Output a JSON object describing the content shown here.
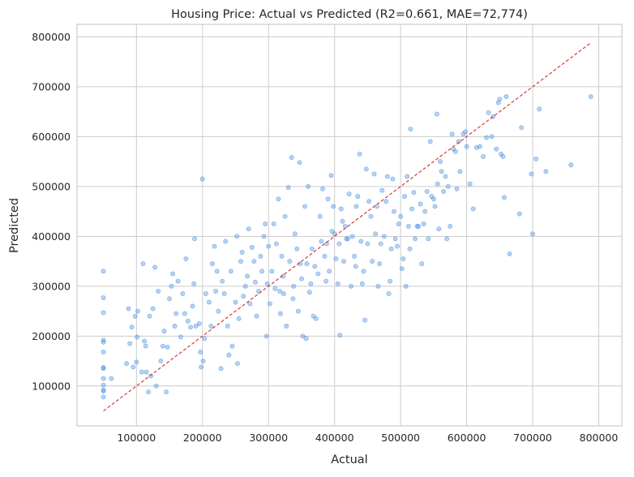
{
  "chart_data": {
    "type": "scatter",
    "title": "Housing Price: Actual vs Predicted (R2=0.661, MAE=72,774)",
    "xlabel": "Actual",
    "ylabel": "Predicted",
    "xlim": [
      10000,
      835000
    ],
    "ylim": [
      20000,
      825000
    ],
    "xticks": [
      "100000",
      "200000",
      "300000",
      "400000",
      "500000",
      "600000",
      "700000",
      "800000"
    ],
    "yticks": [
      "100000",
      "200000",
      "300000",
      "400000",
      "500000",
      "600000",
      "700000",
      "800000"
    ],
    "grid": true,
    "point_color": "#4a90e2",
    "reference_line": {
      "style": "dashed",
      "color": "#d62728",
      "from": [
        50000,
        50000
      ],
      "to": [
        788000,
        788000
      ]
    },
    "points": [
      [
        50000,
        330000
      ],
      [
        50000,
        277000
      ],
      [
        50000,
        247000
      ],
      [
        50000,
        192000
      ],
      [
        50000,
        188000
      ],
      [
        50000,
        168000
      ],
      [
        50000,
        137000
      ],
      [
        50000,
        135000
      ],
      [
        50000,
        115000
      ],
      [
        50000,
        102000
      ],
      [
        50000,
        92000
      ],
      [
        50000,
        90000
      ],
      [
        50000,
        78000
      ],
      [
        62000,
        115000
      ],
      [
        85000,
        145000
      ],
      [
        88000,
        255000
      ],
      [
        90000,
        185000
      ],
      [
        93000,
        218000
      ],
      [
        95000,
        138000
      ],
      [
        98000,
        240000
      ],
      [
        100000,
        148000
      ],
      [
        101000,
        198000
      ],
      [
        102000,
        250000
      ],
      [
        108000,
        128000
      ],
      [
        110000,
        345000
      ],
      [
        112000,
        190000
      ],
      [
        114000,
        180000
      ],
      [
        115000,
        128000
      ],
      [
        118000,
        88000
      ],
      [
        120000,
        240000
      ],
      [
        122000,
        120000
      ],
      [
        125000,
        255000
      ],
      [
        128000,
        338000
      ],
      [
        130000,
        100000
      ],
      [
        133000,
        290000
      ],
      [
        137000,
        150000
      ],
      [
        140000,
        180000
      ],
      [
        142000,
        210000
      ],
      [
        145000,
        88000
      ],
      [
        147000,
        178000
      ],
      [
        150000,
        275000
      ],
      [
        153000,
        300000
      ],
      [
        155000,
        325000
      ],
      [
        158000,
        220000
      ],
      [
        160000,
        245000
      ],
      [
        163000,
        310000
      ],
      [
        167000,
        198000
      ],
      [
        170000,
        285000
      ],
      [
        173000,
        245000
      ],
      [
        175000,
        355000
      ],
      [
        178000,
        230000
      ],
      [
        182000,
        218000
      ],
      [
        185000,
        260000
      ],
      [
        187000,
        305000
      ],
      [
        188000,
        395000
      ],
      [
        190000,
        220000
      ],
      [
        195000,
        225000
      ],
      [
        197000,
        168000
      ],
      [
        198000,
        138000
      ],
      [
        200000,
        515000
      ],
      [
        201000,
        150000
      ],
      [
        203000,
        195000
      ],
      [
        205000,
        285000
      ],
      [
        210000,
        268000
      ],
      [
        213000,
        220000
      ],
      [
        215000,
        345000
      ],
      [
        218000,
        380000
      ],
      [
        220000,
        290000
      ],
      [
        222000,
        330000
      ],
      [
        224000,
        250000
      ],
      [
        228000,
        135000
      ],
      [
        230000,
        310000
      ],
      [
        233000,
        285000
      ],
      [
        235000,
        390000
      ],
      [
        238000,
        220000
      ],
      [
        240000,
        162000
      ],
      [
        243000,
        330000
      ],
      [
        245000,
        180000
      ],
      [
        250000,
        268000
      ],
      [
        252000,
        400000
      ],
      [
        253000,
        145000
      ],
      [
        255000,
        235000
      ],
      [
        258000,
        350000
      ],
      [
        260000,
        368000
      ],
      [
        262000,
        280000
      ],
      [
        265000,
        300000
      ],
      [
        268000,
        320000
      ],
      [
        270000,
        415000
      ],
      [
        272000,
        265000
      ],
      [
        275000,
        378000
      ],
      [
        278000,
        350000
      ],
      [
        280000,
        308000
      ],
      [
        282000,
        240000
      ],
      [
        285000,
        290000
      ],
      [
        288000,
        360000
      ],
      [
        290000,
        330000
      ],
      [
        293000,
        400000
      ],
      [
        295000,
        425000
      ],
      [
        297000,
        200000
      ],
      [
        298000,
        305000
      ],
      [
        300000,
        380000
      ],
      [
        302000,
        265000
      ],
      [
        305000,
        330000
      ],
      [
        308000,
        425000
      ],
      [
        310000,
        295000
      ],
      [
        312000,
        385000
      ],
      [
        315000,
        475000
      ],
      [
        317000,
        290000
      ],
      [
        318000,
        245000
      ],
      [
        320000,
        360000
      ],
      [
        322000,
        320000
      ],
      [
        323000,
        285000
      ],
      [
        325000,
        440000
      ],
      [
        327000,
        220000
      ],
      [
        330000,
        498000
      ],
      [
        332000,
        350000
      ],
      [
        335000,
        558000
      ],
      [
        337000,
        275000
      ],
      [
        338000,
        300000
      ],
      [
        340000,
        405000
      ],
      [
        343000,
        375000
      ],
      [
        345000,
        250000
      ],
      [
        347000,
        548000
      ],
      [
        348000,
        345000
      ],
      [
        350000,
        315000
      ],
      [
        352000,
        200000
      ],
      [
        355000,
        460000
      ],
      [
        357000,
        195000
      ],
      [
        358000,
        345000
      ],
      [
        360000,
        500000
      ],
      [
        362000,
        288000
      ],
      [
        364000,
        305000
      ],
      [
        366000,
        375000
      ],
      [
        368000,
        240000
      ],
      [
        370000,
        340000
      ],
      [
        372000,
        235000
      ],
      [
        375000,
        325000
      ],
      [
        378000,
        440000
      ],
      [
        380000,
        390000
      ],
      [
        382000,
        495000
      ],
      [
        385000,
        360000
      ],
      [
        387000,
        310000
      ],
      [
        388000,
        385000
      ],
      [
        390000,
        475000
      ],
      [
        392000,
        330000
      ],
      [
        395000,
        522000
      ],
      [
        396000,
        410000
      ],
      [
        398000,
        460000
      ],
      [
        400000,
        405000
      ],
      [
        402000,
        355000
      ],
      [
        405000,
        305000
      ],
      [
        407000,
        385000
      ],
      [
        408000,
        202000
      ],
      [
        410000,
        455000
      ],
      [
        412000,
        430000
      ],
      [
        414000,
        350000
      ],
      [
        416000,
        420000
      ],
      [
        418000,
        395000
      ],
      [
        420000,
        395000
      ],
      [
        422000,
        485000
      ],
      [
        425000,
        300000
      ],
      [
        427000,
        400000
      ],
      [
        430000,
        360000
      ],
      [
        432000,
        340000
      ],
      [
        433000,
        460000
      ],
      [
        435000,
        480000
      ],
      [
        438000,
        565000
      ],
      [
        440000,
        390000
      ],
      [
        442000,
        305000
      ],
      [
        444000,
        330000
      ],
      [
        446000,
        232000
      ],
      [
        448000,
        535000
      ],
      [
        450000,
        385000
      ],
      [
        452000,
        470000
      ],
      [
        455000,
        440000
      ],
      [
        457000,
        350000
      ],
      [
        460000,
        525000
      ],
      [
        462000,
        405000
      ],
      [
        464000,
        460000
      ],
      [
        466000,
        300000
      ],
      [
        468000,
        345000
      ],
      [
        470000,
        385000
      ],
      [
        472000,
        492000
      ],
      [
        475000,
        400000
      ],
      [
        478000,
        470000
      ],
      [
        480000,
        520000
      ],
      [
        482000,
        285000
      ],
      [
        484000,
        310000
      ],
      [
        486000,
        375000
      ],
      [
        488000,
        515000
      ],
      [
        490000,
        450000
      ],
      [
        492000,
        395000
      ],
      [
        495000,
        380000
      ],
      [
        497000,
        425000
      ],
      [
        500000,
        440000
      ],
      [
        502000,
        335000
      ],
      [
        504000,
        355000
      ],
      [
        506000,
        480000
      ],
      [
        508000,
        300000
      ],
      [
        510000,
        520000
      ],
      [
        512000,
        420000
      ],
      [
        514000,
        375000
      ],
      [
        515000,
        615000
      ],
      [
        517000,
        455000
      ],
      [
        520000,
        488000
      ],
      [
        522000,
        395000
      ],
      [
        525000,
        420000
      ],
      [
        527000,
        420000
      ],
      [
        530000,
        465000
      ],
      [
        532000,
        345000
      ],
      [
        535000,
        425000
      ],
      [
        537000,
        450000
      ],
      [
        540000,
        490000
      ],
      [
        542000,
        395000
      ],
      [
        545000,
        590000
      ],
      [
        547000,
        480000
      ],
      [
        550000,
        475000
      ],
      [
        552000,
        460000
      ],
      [
        555000,
        645000
      ],
      [
        556000,
        505000
      ],
      [
        558000,
        415000
      ],
      [
        560000,
        550000
      ],
      [
        562000,
        530000
      ],
      [
        565000,
        490000
      ],
      [
        568000,
        520000
      ],
      [
        570000,
        395000
      ],
      [
        572000,
        500000
      ],
      [
        575000,
        420000
      ],
      [
        578000,
        605000
      ],
      [
        580000,
        575000
      ],
      [
        583000,
        570000
      ],
      [
        585000,
        495000
      ],
      [
        588000,
        590000
      ],
      [
        590000,
        530000
      ],
      [
        595000,
        605000
      ],
      [
        598000,
        610000
      ],
      [
        600000,
        580000
      ],
      [
        605000,
        505000
      ],
      [
        610000,
        455000
      ],
      [
        615000,
        578000
      ],
      [
        620000,
        580000
      ],
      [
        625000,
        560000
      ],
      [
        630000,
        598000
      ],
      [
        633000,
        648000
      ],
      [
        638000,
        600000
      ],
      [
        640000,
        640000
      ],
      [
        645000,
        575000
      ],
      [
        648000,
        668000
      ],
      [
        650000,
        675000
      ],
      [
        652000,
        565000
      ],
      [
        655000,
        560000
      ],
      [
        657000,
        478000
      ],
      [
        660000,
        680000
      ],
      [
        665000,
        365000
      ],
      [
        680000,
        445000
      ],
      [
        683000,
        618000
      ],
      [
        700000,
        405000
      ],
      [
        698000,
        525000
      ],
      [
        705000,
        555000
      ],
      [
        710000,
        655000
      ],
      [
        720000,
        530000
      ],
      [
        758000,
        543000
      ],
      [
        788000,
        680000
      ]
    ]
  }
}
